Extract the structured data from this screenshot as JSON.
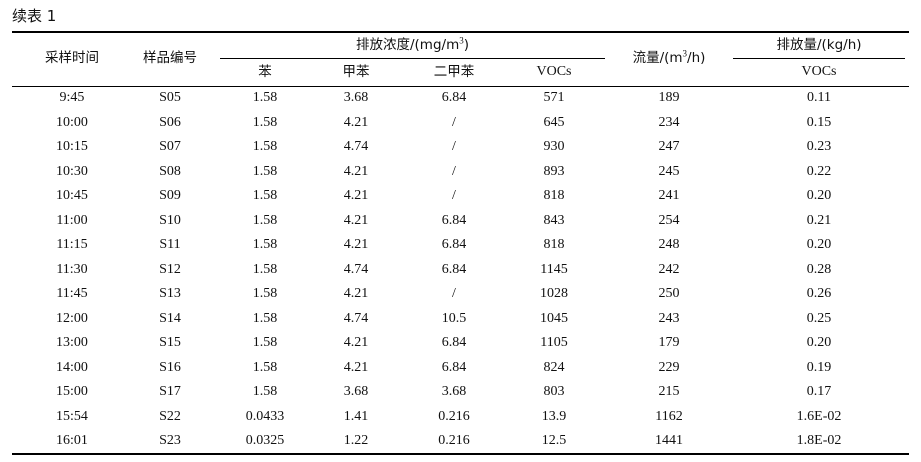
{
  "caption": "续表 1",
  "header": {
    "time": "采样时间",
    "sample_id": "样品编号",
    "conc_group_prefix": "排放浓度/(mg/m",
    "conc_group_exp": "3",
    "conc_group_suffix": ")",
    "benzene": "苯",
    "toluene": "甲苯",
    "xylene": "二甲苯",
    "vocs": "VOCs",
    "flow_prefix": "流量/(m",
    "flow_exp": "3",
    "flow_suffix": "/h)",
    "emission_group": "排放量/(kg/h)",
    "emission_vocs": "VOCs"
  },
  "rows": [
    {
      "time": "9:45",
      "id": "S05",
      "benzene": "1.58",
      "toluene": "3.68",
      "xylene": "6.84",
      "vocs": "571",
      "flow": "189",
      "emission": "0.11"
    },
    {
      "time": "10:00",
      "id": "S06",
      "benzene": "1.58",
      "toluene": "4.21",
      "xylene": "/",
      "vocs": "645",
      "flow": "234",
      "emission": "0.15"
    },
    {
      "time": "10:15",
      "id": "S07",
      "benzene": "1.58",
      "toluene": "4.74",
      "xylene": "/",
      "vocs": "930",
      "flow": "247",
      "emission": "0.23"
    },
    {
      "time": "10:30",
      "id": "S08",
      "benzene": "1.58",
      "toluene": "4.21",
      "xylene": "/",
      "vocs": "893",
      "flow": "245",
      "emission": "0.22"
    },
    {
      "time": "10:45",
      "id": "S09",
      "benzene": "1.58",
      "toluene": "4.21",
      "xylene": "/",
      "vocs": "818",
      "flow": "241",
      "emission": "0.20"
    },
    {
      "time": "11:00",
      "id": "S10",
      "benzene": "1.58",
      "toluene": "4.21",
      "xylene": "6.84",
      "vocs": "843",
      "flow": "254",
      "emission": "0.21"
    },
    {
      "time": "11:15",
      "id": "S11",
      "benzene": "1.58",
      "toluene": "4.21",
      "xylene": "6.84",
      "vocs": "818",
      "flow": "248",
      "emission": "0.20"
    },
    {
      "time": "11:30",
      "id": "S12",
      "benzene": "1.58",
      "toluene": "4.74",
      "xylene": "6.84",
      "vocs": "1145",
      "flow": "242",
      "emission": "0.28"
    },
    {
      "time": "11:45",
      "id": "S13",
      "benzene": "1.58",
      "toluene": "4.21",
      "xylene": "/",
      "vocs": "1028",
      "flow": "250",
      "emission": "0.26"
    },
    {
      "time": "12:00",
      "id": "S14",
      "benzene": "1.58",
      "toluene": "4.74",
      "xylene": "10.5",
      "vocs": "1045",
      "flow": "243",
      "emission": "0.25"
    },
    {
      "time": "13:00",
      "id": "S15",
      "benzene": "1.58",
      "toluene": "4.21",
      "xylene": "6.84",
      "vocs": "1105",
      "flow": "179",
      "emission": "0.20"
    },
    {
      "time": "14:00",
      "id": "S16",
      "benzene": "1.58",
      "toluene": "4.21",
      "xylene": "6.84",
      "vocs": "824",
      "flow": "229",
      "emission": "0.19"
    },
    {
      "time": "15:00",
      "id": "S17",
      "benzene": "1.58",
      "toluene": "3.68",
      "xylene": "3.68",
      "vocs": "803",
      "flow": "215",
      "emission": "0.17"
    },
    {
      "time": "15:54",
      "id": "S22",
      "benzene": "0.0433",
      "toluene": "1.41",
      "xylene": "0.216",
      "vocs": "13.9",
      "flow": "1162",
      "emission": "1.6E-02"
    },
    {
      "time": "16:01",
      "id": "S23",
      "benzene": "0.0325",
      "toluene": "1.22",
      "xylene": "0.216",
      "vocs": "12.5",
      "flow": "1441",
      "emission": "1.8E-02"
    }
  ]
}
